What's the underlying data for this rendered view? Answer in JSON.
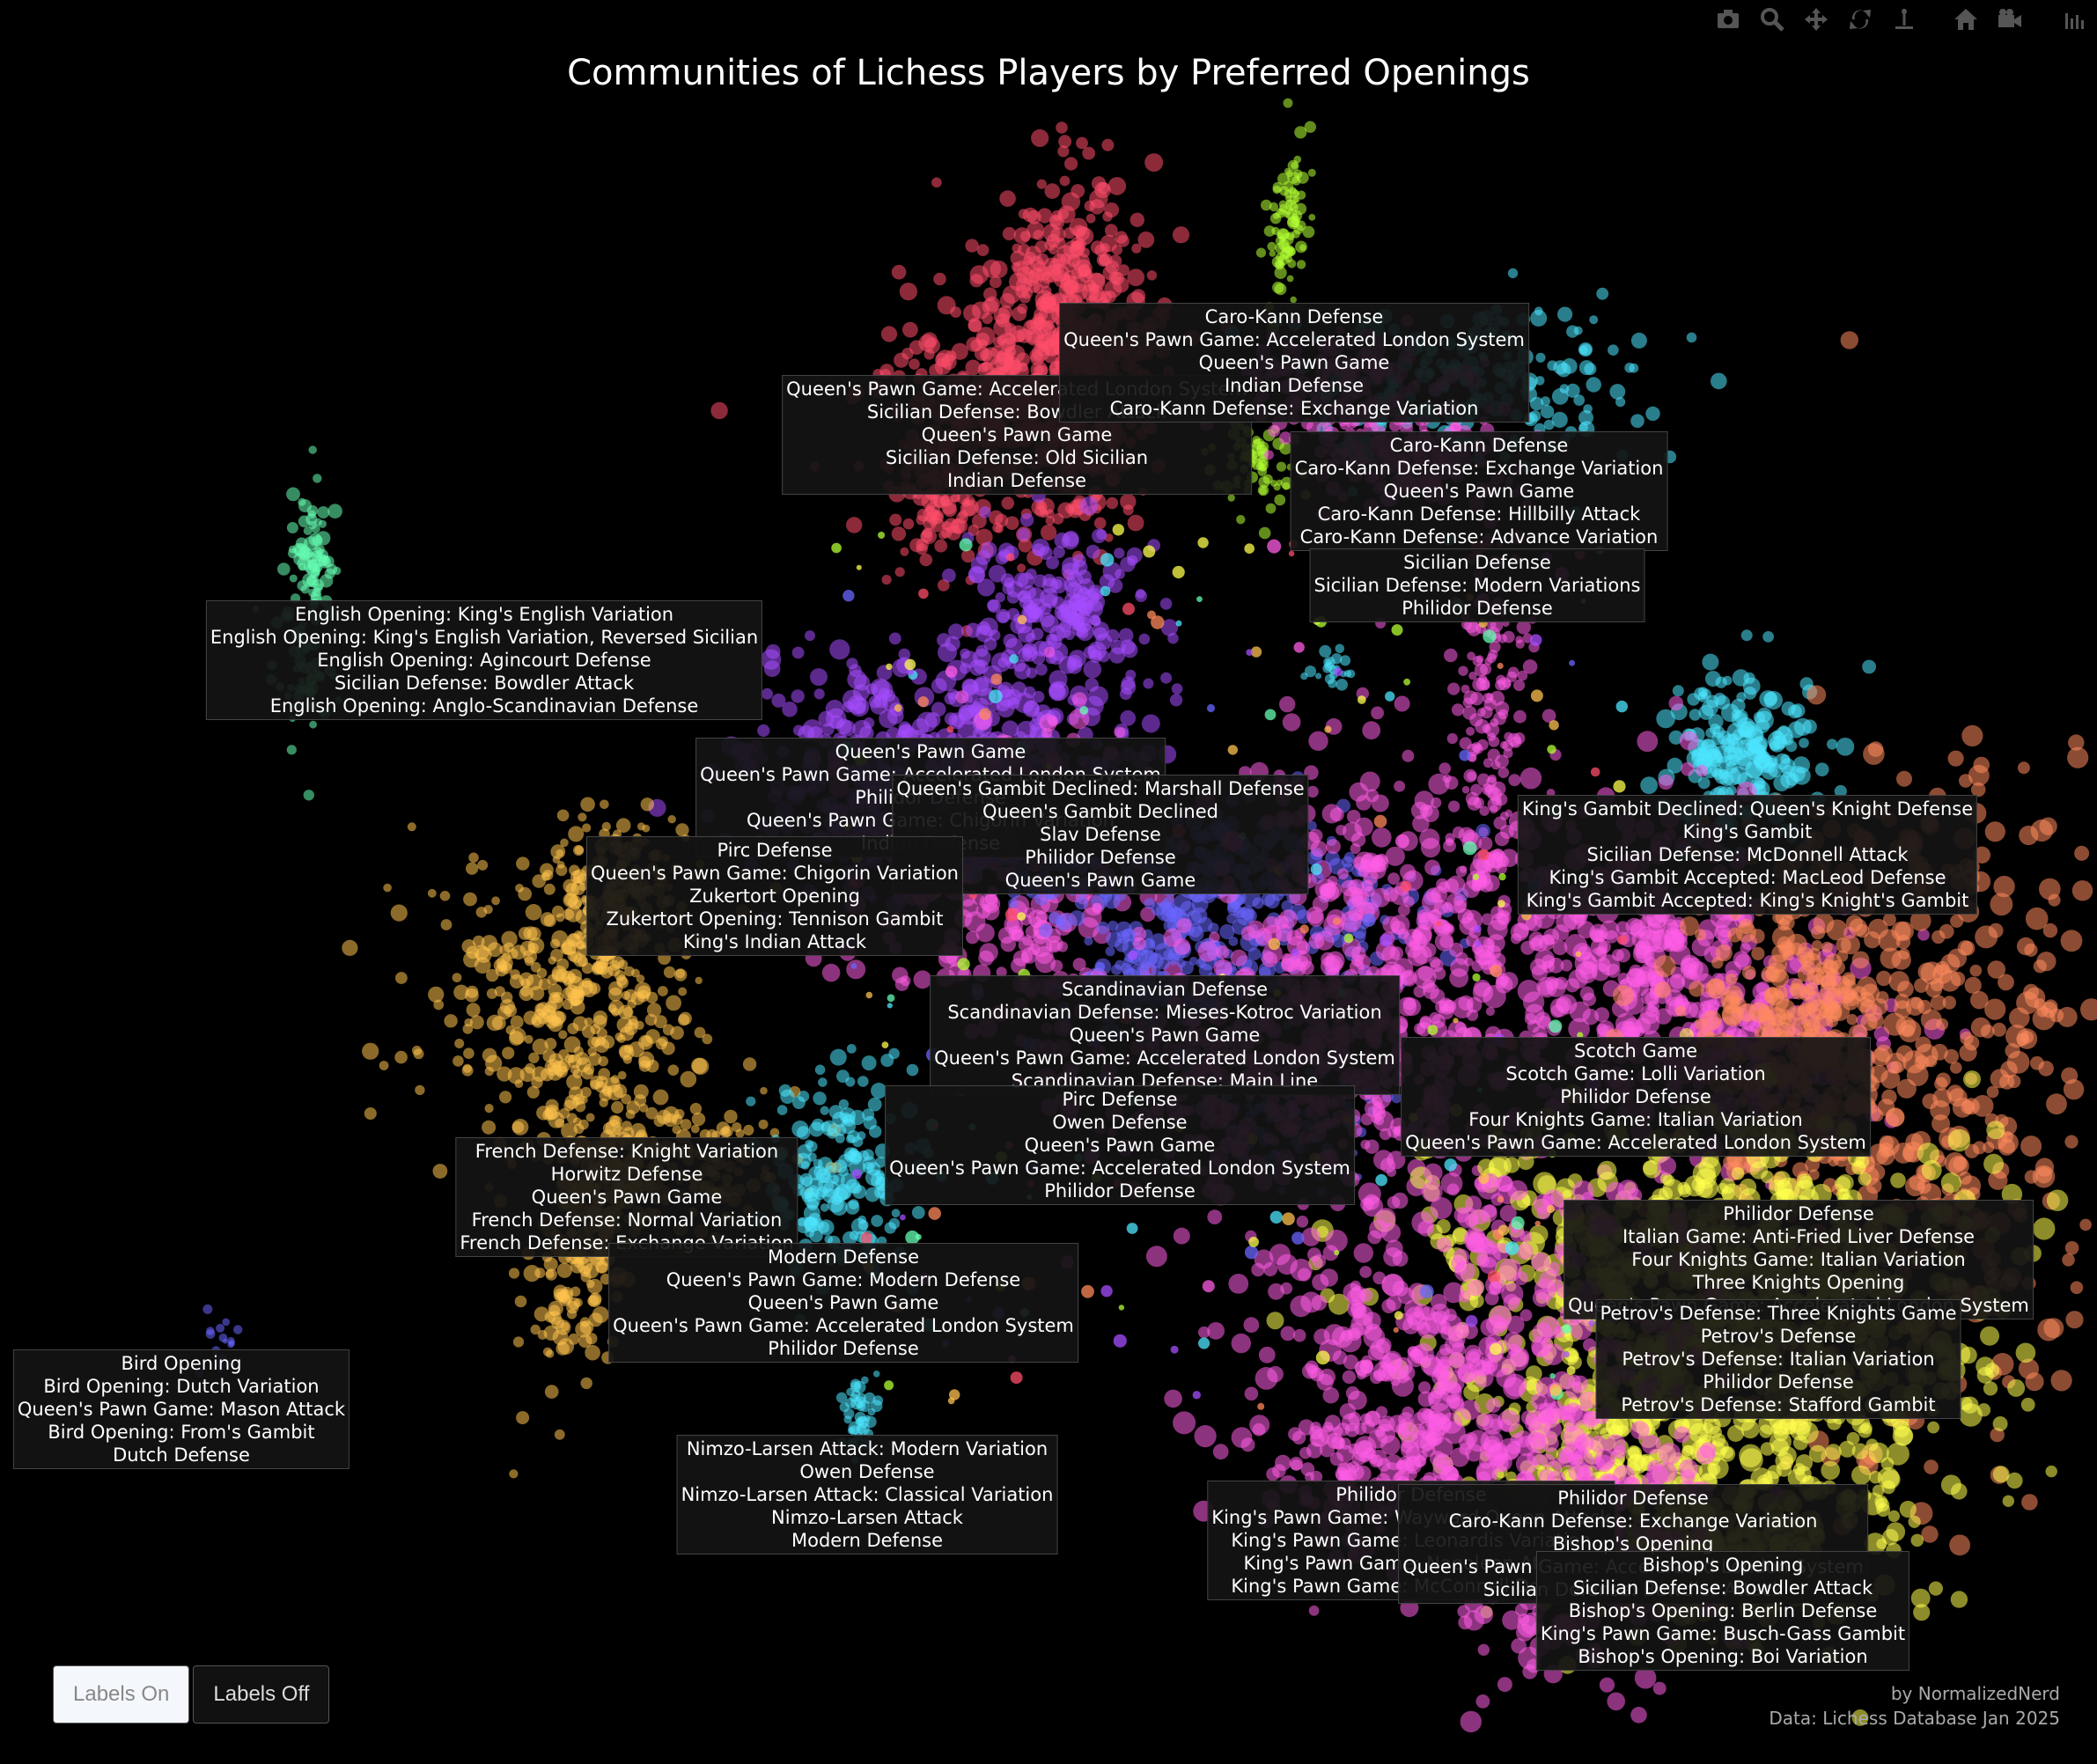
{
  "title": "Communities of Lichess Players by Preferred Openings",
  "toolbar": {
    "icons": [
      "camera-icon",
      "zoom-icon",
      "pan-icon",
      "autoscale-icon",
      "spike-icon",
      "home-icon",
      "video-icon",
      "plotly-logo-icon"
    ]
  },
  "buttons": {
    "labels_on": "Labels On",
    "labels_off": "Labels Off"
  },
  "credit": {
    "author": "by NormalizedNerd",
    "source": "Data: Lichess Database Jan 2025"
  },
  "colors": {
    "red": "#ff4d6a",
    "pink": "#ff5ce6",
    "violet": "#a64dff",
    "blue": "#6a66ff",
    "cyan": "#4de6ff",
    "lime": "#b3ff33",
    "yellow": "#ffff4d",
    "orange": "#ff8a5c",
    "gold": "#ffc24d",
    "mint": "#66ffb3"
  },
  "chart_data": {
    "type": "scatter",
    "title": "Communities of Lichess Players by Preferred Openings",
    "xlabel": "",
    "ylabel": "",
    "grid": false,
    "axes_visible": false,
    "communities": [
      {
        "color": "red",
        "openings": [
          "Queen's Pawn Game: Accelerated London System",
          "Sicilian Defense: Bowdler Attack",
          "Queen's Pawn Game",
          "Sicilian Defense: Old Sicilian",
          "Indian Defense"
        ]
      },
      {
        "color": "lime",
        "openings": [
          "Caro-Kann Defense",
          "Queen's Pawn Game: Accelerated London System",
          "Queen's Pawn Game",
          "Indian Defense",
          "Caro-Kann Defense: Exchange Variation"
        ]
      },
      {
        "color": "cyan",
        "openings": [
          "Caro-Kann Defense",
          "Caro-Kann Defense: Exchange Variation",
          "Queen's Pawn Game",
          "Caro-Kann Defense: Hillbilly Attack",
          "Caro-Kann Defense: Advance Variation"
        ]
      },
      {
        "color": "pink",
        "openings": [
          "Sicilian Defense",
          "Sicilian Defense: Modern Variations",
          "Philidor Defense"
        ]
      },
      {
        "color": "mint",
        "openings": [
          "English Opening: King's English Variation",
          "English Opening: King's English Variation, Reversed Sicilian",
          "English Opening: Agincourt Defense",
          "Sicilian Defense: Bowdler Attack",
          "English Opening: Anglo-Scandinavian Defense"
        ]
      },
      {
        "color": "violet",
        "openings": [
          "Queen's Pawn Game",
          "Queen's Pawn Game: Accelerated London System",
          "Philidor Defense",
          "Queen's Pawn Game: Chigorin Variation",
          "Indian Defense"
        ]
      },
      {
        "color": "blue",
        "openings": [
          "Queen's Gambit Declined: Marshall Defense",
          "Queen's Gambit Declined",
          "Slav Defense",
          "Philidor Defense",
          "Queen's Pawn Game"
        ]
      },
      {
        "color": "gold",
        "openings": [
          "Pirc Defense",
          "Queen's Pawn Game: Chigorin Variation",
          "Zukertort Opening",
          "Zukertort Opening: Tennison Gambit",
          "King's Indian Attack"
        ]
      },
      {
        "color": "cyan",
        "openings": [
          "King's Gambit Declined: Queen's Knight Defense",
          "King's Gambit",
          "Sicilian Defense: McDonnell Attack",
          "King's Gambit Accepted: MacLeod Defense",
          "King's Gambit Accepted: King's Knight's Gambit"
        ]
      },
      {
        "color": "violet",
        "openings": [
          "Scandinavian Defense",
          "Scandinavian Defense: Mieses-Kotroc Variation",
          "Queen's Pawn Game",
          "Queen's Pawn Game: Accelerated London System",
          "Scandinavian Defense: Main Line"
        ]
      },
      {
        "color": "pink",
        "openings": [
          "Scotch Game",
          "Scotch Game: Lolli Variation",
          "Philidor Defense",
          "Four Knights Game: Italian Variation",
          "Queen's Pawn Game: Accelerated London System"
        ]
      },
      {
        "color": "pink",
        "openings": [
          "Pirc Defense",
          "Owen Defense",
          "Queen's Pawn Game",
          "Queen's Pawn Game: Accelerated London System",
          "Philidor Defense"
        ]
      },
      {
        "color": "gold",
        "openings": [
          "French Defense: Knight Variation",
          "Horwitz Defense",
          "Queen's Pawn Game",
          "French Defense: Normal Variation",
          "French Defense: Exchange Variation"
        ]
      },
      {
        "color": "orange",
        "openings": [
          "Philidor Defense",
          "Italian Game: Anti-Fried Liver Defense",
          "Four Knights Game: Italian Variation",
          "Three Knights Opening",
          "Queen's Pawn Game: Accelerated London System"
        ]
      },
      {
        "color": "gold",
        "openings": [
          "Modern Defense",
          "Queen's Pawn Game: Modern Defense",
          "Queen's Pawn Game",
          "Queen's Pawn Game: Accelerated London System",
          "Philidor Defense"
        ]
      },
      {
        "color": "yellow",
        "openings": [
          "Petrov's Defense: Three Knights Game",
          "Petrov's Defense",
          "Petrov's Defense: Italian Variation",
          "Philidor Defense",
          "Petrov's Defense: Stafford Gambit"
        ]
      },
      {
        "color": "blue",
        "openings": [
          "Bird Opening",
          "Bird Opening: Dutch Variation",
          "Queen's Pawn Game: Mason Attack",
          "Bird Opening: From's Gambit",
          "Dutch Defense"
        ]
      },
      {
        "color": "cyan",
        "openings": [
          "Nimzo-Larsen Attack: Modern Variation",
          "Owen Defense",
          "Nimzo-Larsen Attack: Classical Variation",
          "Nimzo-Larsen Attack",
          "Modern Defense"
        ]
      },
      {
        "color": "pink",
        "openings": [
          "Philidor Defense",
          "King's Pawn Game: Wayward Queen Attack",
          "King's Pawn Game: Leonardis Variation",
          "King's Pawn Game: Napoleon Attack",
          "King's Pawn Game: McConnell Defense"
        ]
      },
      {
        "color": "yellow",
        "openings": [
          "Philidor Defense",
          "Caro-Kann Defense: Exchange Variation",
          "Bishop's Opening",
          "Queen's Pawn Game: Accelerated London System",
          "Sicilian Defense: Bowdler Attack"
        ]
      },
      {
        "color": "yellow",
        "openings": [
          "Bishop's Opening",
          "Sicilian Defense: Bowdler Attack",
          "Bishop's Opening: Berlin Defense",
          "King's Pawn Game: Busch-Gass Gambit",
          "Bishop's Opening: Boi Variation"
        ]
      }
    ]
  }
}
